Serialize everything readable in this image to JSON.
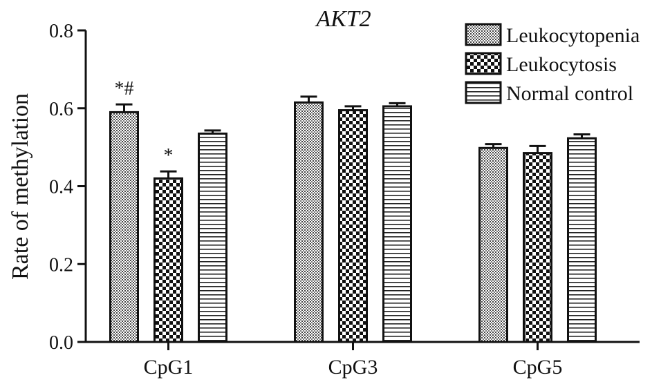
{
  "chart_data": {
    "type": "bar",
    "title": "AKT2",
    "xlabel": "",
    "ylabel": "Rate of methylation",
    "ylim": [
      0,
      0.8
    ],
    "yticks": [
      0.0,
      0.2,
      0.4,
      0.6,
      0.8
    ],
    "ytick_labels": [
      "0.0",
      "0.2",
      "0.4",
      "0.6",
      "0.8"
    ],
    "categories": [
      "CpG1",
      "CpG3",
      "CpG5"
    ],
    "series": [
      {
        "name": "Leukocytopenia",
        "pattern": "dots",
        "values": [
          0.59,
          0.615,
          0.498
        ],
        "errors": [
          0.02,
          0.015,
          0.01
        ]
      },
      {
        "name": "Leukocytosis",
        "pattern": "checker",
        "values": [
          0.42,
          0.595,
          0.485
        ],
        "errors": [
          0.018,
          0.01,
          0.018
        ]
      },
      {
        "name": "Normal control",
        "pattern": "hlines",
        "values": [
          0.535,
          0.605,
          0.523
        ],
        "errors": [
          0.008,
          0.008,
          0.01
        ]
      }
    ],
    "annotations": [
      {
        "category": "CpG1",
        "series": "Leukocytopenia",
        "text": "*#"
      },
      {
        "category": "CpG1",
        "series": "Leukocytosis",
        "text": "*"
      }
    ],
    "legend_position": "top-right",
    "grid": false,
    "colors": {
      "bar_stroke": "#111111",
      "fill_light": "#bdbdbd",
      "fill_dark": "#111111"
    }
  }
}
